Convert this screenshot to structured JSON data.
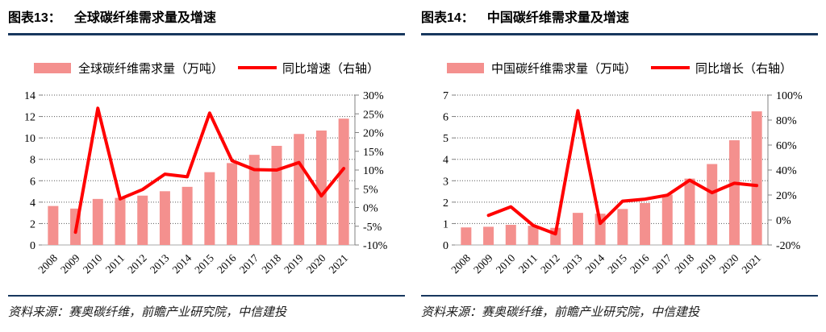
{
  "colors": {
    "bar": "#F4908E",
    "line": "#FF0000",
    "rule": "#17375E",
    "grid": "#595959",
    "baseline": "#C6C6C6",
    "axis_line": "#808080"
  },
  "chart_data": [
    {
      "type": "bar+line",
      "figure_label": "图表13：",
      "title": "全球碳纤维需求量及增速",
      "legend": [
        {
          "series": "bar",
          "label": "全球碳纤维需求量（万吨）",
          "marker_color": "#F4908E"
        },
        {
          "series": "line",
          "label": "同比增速（右轴）",
          "marker_color": "#FF0000"
        }
      ],
      "categories": [
        "2008",
        "2009",
        "2010",
        "2011",
        "2012",
        "2013",
        "2014",
        "2015",
        "2016",
        "2017",
        "2018",
        "2019",
        "2020",
        "2021"
      ],
      "series": [
        {
          "name": "全球碳纤维需求量（万吨）",
          "type": "bar",
          "axis": "left",
          "values": [
            3.64,
            3.4,
            4.3,
            4.4,
            4.61,
            5.02,
            5.43,
            6.8,
            7.65,
            8.42,
            9.26,
            10.37,
            10.69,
            11.8
          ]
        },
        {
          "name": "同比增速（右轴）",
          "type": "line",
          "axis": "right",
          "values": [
            null,
            -6.6,
            26.5,
            2.3,
            4.8,
            8.9,
            8.2,
            25.2,
            12.5,
            10.1,
            10.0,
            12.0,
            3.1,
            10.4
          ]
        }
      ],
      "left_axis": {
        "min": 0,
        "max": 14,
        "tick_labels": [
          "0",
          "2",
          "4",
          "6",
          "8",
          "10",
          "12",
          "14"
        ]
      },
      "right_axis": {
        "min": -10,
        "max": 30,
        "tick_labels_top_to_bottom": [
          "30%",
          "25%",
          "20%",
          "15%",
          "10%",
          "5%",
          "0%",
          "-5%",
          "-10%"
        ]
      },
      "grid": "horizontal-dotted",
      "legend_position": "top",
      "source_label": "资料来源：",
      "source_text": "赛奥碳纤维，前瞻产业研究院，中信建投"
    },
    {
      "type": "bar+line",
      "figure_label": "图表14：",
      "title": "中国碳纤维需求量及增速",
      "legend": [
        {
          "series": "bar",
          "label": "中国碳纤维需求量（万吨）",
          "marker_color": "#F4908E"
        },
        {
          "series": "line",
          "label": "同比增长（右轴）",
          "marker_color": "#FF0000"
        }
      ],
      "categories": [
        "2008",
        "2009",
        "2010",
        "2011",
        "2012",
        "2013",
        "2014",
        "2015",
        "2016",
        "2017",
        "2018",
        "2019",
        "2020",
        "2021"
      ],
      "series": [
        {
          "name": "中国碳纤维需求量（万吨）",
          "type": "bar",
          "axis": "left",
          "values": [
            0.82,
            0.85,
            0.94,
            0.9,
            0.8,
            1.5,
            1.46,
            1.68,
            1.96,
            2.35,
            3.1,
            3.78,
            4.89,
            6.24
          ]
        },
        {
          "name": "同比增长（右轴）",
          "type": "line",
          "axis": "right",
          "values": [
            null,
            3.7,
            10.6,
            -4.3,
            -11.1,
            87.5,
            -2.7,
            15.1,
            16.7,
            19.9,
            31.9,
            21.9,
            29.4,
            27.6
          ]
        }
      ],
      "left_axis": {
        "min": 0,
        "max": 7,
        "tick_labels": [
          "0",
          "1",
          "2",
          "3",
          "4",
          "5",
          "6",
          "7"
        ]
      },
      "right_axis": {
        "min": -20,
        "max": 100,
        "tick_labels_top_to_bottom": [
          "100%",
          "80%",
          "60%",
          "40%",
          "20%",
          "0%",
          "-20%"
        ]
      },
      "grid": "horizontal-dotted",
      "legend_position": "top",
      "source_label": "资料来源：",
      "source_text": "赛奥碳纤维，前瞻产业研究院，中信建投"
    }
  ]
}
